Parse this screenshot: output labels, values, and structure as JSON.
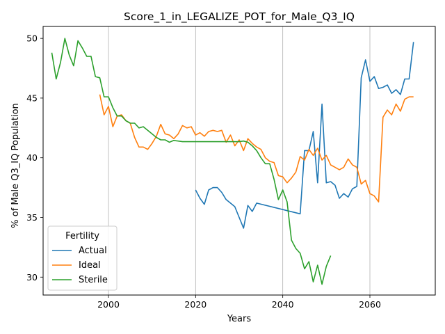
{
  "chart_data": {
    "type": "line",
    "title": "Score_1_in_LEGALIZE_POT_for_Male_Q3_IQ",
    "xlabel": "Years",
    "ylabel": "% of Male Q3_IQ Population",
    "xlim": [
      1985,
      2075
    ],
    "ylim": [
      28.5,
      51.0
    ],
    "xticks": [
      2000,
      2020,
      2040,
      2060
    ],
    "yticks": [
      30,
      35,
      40,
      45,
      50
    ],
    "grid": "x-only",
    "legend": {
      "title": "Fertility",
      "position": "lower-left"
    },
    "series": [
      {
        "name": "Actual",
        "color": "#1f77b4",
        "points": [
          [
            2020,
            37.3
          ],
          [
            2021,
            36.6
          ],
          [
            2022,
            36.1
          ],
          [
            2023,
            37.3
          ],
          [
            2024,
            37.5
          ],
          [
            2025,
            37.5
          ],
          [
            2026,
            37.1
          ],
          [
            2027,
            36.5
          ],
          [
            2028,
            36.2
          ],
          [
            2029,
            35.9
          ],
          [
            2030,
            35.0
          ],
          [
            2031,
            34.1
          ],
          [
            2032,
            36.0
          ],
          [
            2033,
            35.5
          ],
          [
            2034,
            36.2
          ],
          [
            2044,
            35.3
          ],
          [
            2045,
            40.6
          ],
          [
            2046,
            40.6
          ],
          [
            2047,
            42.2
          ],
          [
            2048,
            37.9
          ],
          [
            2049,
            44.5
          ],
          [
            2050,
            37.9
          ],
          [
            2051,
            38.0
          ],
          [
            2052,
            37.7
          ],
          [
            2053,
            36.6
          ],
          [
            2054,
            37.0
          ],
          [
            2055,
            36.7
          ],
          [
            2056,
            37.4
          ],
          [
            2057,
            37.6
          ],
          [
            2058,
            46.7
          ],
          [
            2059,
            48.2
          ],
          [
            2060,
            46.4
          ],
          [
            2061,
            46.8
          ],
          [
            2062,
            45.8
          ],
          [
            2063,
            45.9
          ],
          [
            2064,
            46.1
          ],
          [
            2065,
            45.4
          ],
          [
            2066,
            45.7
          ],
          [
            2067,
            45.3
          ],
          [
            2068,
            46.6
          ],
          [
            2069,
            46.6
          ],
          [
            2070,
            49.7
          ]
        ]
      },
      {
        "name": "Ideal",
        "color": "#ff7f0e",
        "points": [
          [
            1998,
            45.3
          ],
          [
            1999,
            43.6
          ],
          [
            2000,
            44.3
          ],
          [
            2001,
            42.6
          ],
          [
            2002,
            43.5
          ],
          [
            2003,
            43.6
          ],
          [
            2004,
            43.1
          ],
          [
            2005,
            42.9
          ],
          [
            2006,
            41.7
          ],
          [
            2007,
            40.9
          ],
          [
            2008,
            40.9
          ],
          [
            2009,
            40.7
          ],
          [
            2010,
            41.2
          ],
          [
            2011,
            41.8
          ],
          [
            2012,
            42.8
          ],
          [
            2013,
            42.0
          ],
          [
            2014,
            41.9
          ],
          [
            2015,
            41.6
          ],
          [
            2016,
            42.0
          ],
          [
            2017,
            42.7
          ],
          [
            2018,
            42.5
          ],
          [
            2019,
            42.6
          ],
          [
            2020,
            41.9
          ],
          [
            2021,
            42.1
          ],
          [
            2022,
            41.8
          ],
          [
            2023,
            42.2
          ],
          [
            2024,
            42.3
          ],
          [
            2025,
            42.2
          ],
          [
            2026,
            42.3
          ],
          [
            2027,
            41.3
          ],
          [
            2028,
            41.9
          ],
          [
            2029,
            41.0
          ],
          [
            2030,
            41.5
          ],
          [
            2031,
            40.6
          ],
          [
            2032,
            41.6
          ],
          [
            2033,
            41.2
          ],
          [
            2034,
            40.9
          ],
          [
            2035,
            40.7
          ],
          [
            2036,
            40.0
          ],
          [
            2037,
            39.7
          ],
          [
            2038,
            39.6
          ],
          [
            2039,
            38.5
          ],
          [
            2040,
            38.4
          ],
          [
            2041,
            37.9
          ],
          [
            2042,
            38.3
          ],
          [
            2043,
            38.8
          ],
          [
            2044,
            40.1
          ],
          [
            2045,
            39.8
          ],
          [
            2046,
            40.7
          ],
          [
            2047,
            40.2
          ],
          [
            2048,
            40.8
          ],
          [
            2049,
            39.8
          ],
          [
            2050,
            40.2
          ],
          [
            2051,
            39.4
          ],
          [
            2052,
            39.2
          ],
          [
            2053,
            39.0
          ],
          [
            2054,
            39.2
          ],
          [
            2055,
            39.9
          ],
          [
            2056,
            39.4
          ],
          [
            2057,
            39.2
          ],
          [
            2058,
            37.8
          ],
          [
            2059,
            38.1
          ],
          [
            2060,
            37.0
          ],
          [
            2061,
            36.8
          ],
          [
            2062,
            36.3
          ],
          [
            2063,
            43.4
          ],
          [
            2064,
            44.0
          ],
          [
            2065,
            43.6
          ],
          [
            2066,
            44.5
          ],
          [
            2067,
            43.9
          ],
          [
            2068,
            44.9
          ],
          [
            2069,
            45.1
          ],
          [
            2070,
            45.1
          ]
        ]
      },
      {
        "name": "Sterile",
        "color": "#2ca02c",
        "points": [
          [
            1987,
            48.8
          ],
          [
            1988,
            46.6
          ],
          [
            1989,
            48.0
          ],
          [
            1990,
            50.0
          ],
          [
            1991,
            48.6
          ],
          [
            1992,
            47.7
          ],
          [
            1993,
            49.8
          ],
          [
            1994,
            49.2
          ],
          [
            1995,
            48.5
          ],
          [
            1996,
            48.5
          ],
          [
            1997,
            46.8
          ],
          [
            1998,
            46.7
          ],
          [
            1999,
            45.1
          ],
          [
            2000,
            45.1
          ],
          [
            2001,
            44.2
          ],
          [
            2002,
            43.5
          ],
          [
            2003,
            43.5
          ],
          [
            2004,
            43.1
          ],
          [
            2005,
            42.9
          ],
          [
            2006,
            42.9
          ],
          [
            2007,
            42.5
          ],
          [
            2008,
            42.6
          ],
          [
            2009,
            42.3
          ],
          [
            2010,
            42.0
          ],
          [
            2011,
            41.7
          ],
          [
            2012,
            41.5
          ],
          [
            2013,
            41.5
          ],
          [
            2014,
            41.3
          ],
          [
            2015,
            41.45
          ],
          [
            2016,
            41.4
          ],
          [
            2017,
            41.35
          ],
          [
            2030,
            41.35
          ],
          [
            2031,
            41.4
          ],
          [
            2032,
            41.3
          ],
          [
            2033,
            41.0
          ],
          [
            2034,
            40.6
          ],
          [
            2035,
            40.0
          ],
          [
            2036,
            39.5
          ],
          [
            2037,
            39.5
          ],
          [
            2038,
            38.2
          ],
          [
            2039,
            36.5
          ],
          [
            2040,
            37.3
          ],
          [
            2041,
            36.3
          ],
          [
            2042,
            33.1
          ],
          [
            2043,
            32.4
          ],
          [
            2044,
            32.0
          ],
          [
            2045,
            30.7
          ],
          [
            2046,
            31.3
          ],
          [
            2047,
            29.6
          ],
          [
            2048,
            31.0
          ],
          [
            2049,
            29.4
          ],
          [
            2050,
            30.9
          ],
          [
            2051,
            31.8
          ]
        ]
      }
    ]
  }
}
